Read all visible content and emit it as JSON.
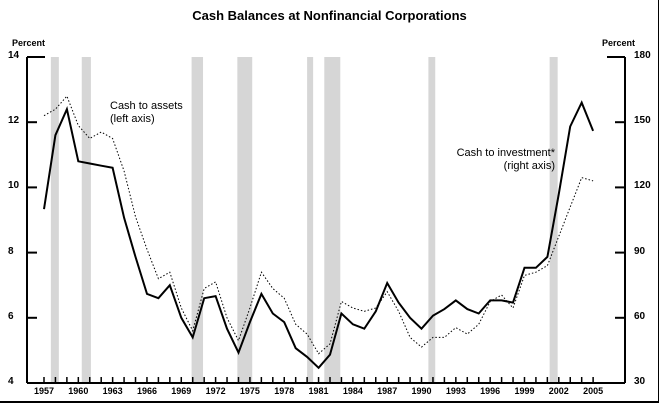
{
  "chart_data": {
    "type": "line",
    "title": "Cash Balances at Nonfinancial Corporations",
    "xlabel": "",
    "ylabel_left": "Percent",
    "ylabel_right": "Percent",
    "ylim_left": [
      4,
      14
    ],
    "ylim_right": [
      30,
      180
    ],
    "yticks_left": [
      4,
      6,
      8,
      10,
      12,
      14
    ],
    "yticks_right": [
      30,
      60,
      90,
      120,
      150,
      180
    ],
    "xticks": [
      1957,
      1960,
      1963,
      1966,
      1969,
      1972,
      1975,
      1978,
      1981,
      1984,
      1987,
      1990,
      1993,
      1996,
      1999,
      2002,
      2005
    ],
    "grid": false,
    "legend": "inline annotations",
    "x": [
      1957,
      1958,
      1959,
      1960,
      1961,
      1962,
      1963,
      1964,
      1965,
      1966,
      1967,
      1968,
      1969,
      1970,
      1971,
      1972,
      1973,
      1974,
      1975,
      1976,
      1977,
      1978,
      1979,
      1980,
      1981,
      1982,
      1983,
      1984,
      1985,
      1986,
      1987,
      1988,
      1989,
      1990,
      1991,
      1992,
      1993,
      1994,
      1995,
      1996,
      1997,
      1998,
      1999,
      2000,
      2001,
      2002,
      2003,
      2004,
      2005
    ],
    "series": [
      {
        "name": "Cash to assets (left axis)",
        "axis": "left",
        "style": "dotted",
        "values": [
          12.2,
          12.4,
          12.8,
          11.9,
          11.5,
          11.7,
          11.5,
          10.5,
          9.1,
          8.1,
          7.2,
          7.4,
          6.3,
          5.6,
          6.9,
          7.1,
          6.0,
          5.3,
          6.3,
          7.4,
          6.9,
          6.6,
          5.8,
          5.5,
          4.9,
          5.2,
          6.5,
          6.3,
          6.2,
          6.3,
          6.8,
          6.2,
          5.4,
          5.1,
          5.4,
          5.4,
          5.7,
          5.5,
          5.8,
          6.5,
          6.7,
          6.3,
          7.3,
          7.4,
          7.6,
          8.5,
          9.4,
          10.3,
          10.2
        ]
      },
      {
        "name": "Cash to investment* (right axis)",
        "axis": "right",
        "style": "solid",
        "values": [
          110,
          144,
          156,
          132,
          131,
          130,
          129,
          106,
          88,
          71,
          69,
          75,
          60,
          51,
          69,
          70,
          55,
          44,
          58,
          71,
          62,
          58,
          46,
          42,
          37,
          43,
          62,
          57,
          55,
          63,
          76,
          67,
          60,
          55,
          61,
          64,
          68,
          64,
          62,
          68,
          68,
          67,
          83,
          83,
          88,
          117,
          148,
          159,
          146
        ]
      }
    ],
    "recessions": [
      [
        1957.6,
        1958.3
      ],
      [
        1960.3,
        1961.1
      ],
      [
        1969.9,
        1970.9
      ],
      [
        1973.9,
        1975.2
      ],
      [
        1980.0,
        1980.5
      ],
      [
        1981.5,
        1982.9
      ],
      [
        1990.6,
        1991.2
      ],
      [
        2001.2,
        2001.9
      ]
    ],
    "annotations": [
      {
        "text_line1": "Cash to assets",
        "text_line2": "(left axis)"
      },
      {
        "text_line1": "Cash to investment*",
        "text_line2": "(right axis)"
      }
    ]
  }
}
